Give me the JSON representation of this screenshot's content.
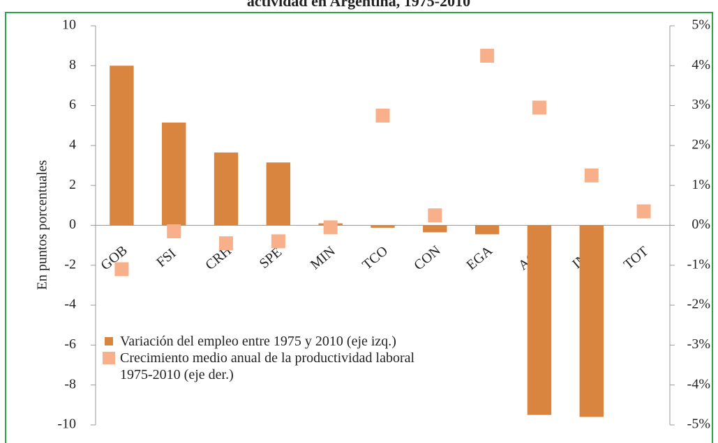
{
  "chart_data": {
    "type": "bar",
    "title": "actividad en Argentina, 1975-2010",
    "ylabel": "En puntos porcentuales",
    "categories": [
      "GOB",
      "FSI",
      "CRH",
      "SPE",
      "MIN",
      "TCO",
      "CON",
      "EGA",
      "AGR",
      "IND",
      "TOT"
    ],
    "series": [
      {
        "name": "Variación del empleo entre 1975 y 2010 (eje izq.)",
        "color": "#d9843f",
        "type": "bar",
        "values": [
          8,
          5.15,
          3.65,
          3.15,
          0.1,
          -0.12,
          -0.35,
          -0.45,
          -9.5,
          -9.6,
          0
        ]
      },
      {
        "name": "Crecimiento medio anual de la productividad laboral 1975-2010 (eje der.)",
        "color": "#f7b08a",
        "type": "scatter",
        "axis": "y2",
        "values": [
          -1.1,
          -0.15,
          -0.45,
          -0.4,
          -0.05,
          2.75,
          0.25,
          4.25,
          2.95,
          1.25,
          0.35
        ]
      }
    ],
    "ylim": [
      -10,
      10
    ],
    "yticks": [
      -10,
      -8,
      -6,
      -4,
      -2,
      0,
      2,
      4,
      6,
      8,
      10
    ],
    "y2lim": [
      -5,
      5
    ],
    "y2ticks": [
      {
        "value": -5,
        "label": "-5%"
      },
      {
        "value": -4,
        "label": "-4%"
      },
      {
        "value": -3,
        "label": "-3%"
      },
      {
        "value": -2,
        "label": "-2%"
      },
      {
        "value": -1,
        "label": "-1%"
      },
      {
        "value": 0,
        "label": "0%"
      },
      {
        "value": 1,
        "label": "1%"
      },
      {
        "value": 2,
        "label": "2%"
      },
      {
        "value": 3,
        "label": "3%"
      },
      {
        "value": 4,
        "label": "4%"
      },
      {
        "value": 5,
        "label": "5%"
      }
    ]
  }
}
